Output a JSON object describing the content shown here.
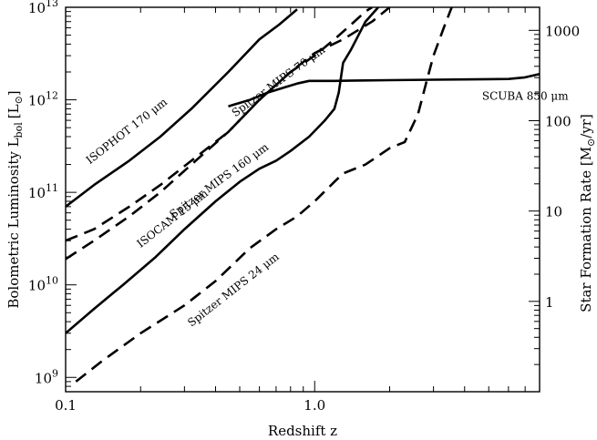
{
  "chart_data": {
    "type": "line",
    "xlabel": "Redshift z",
    "ylabel": "Bolometric Luminosity L",
    "ylabel_sub": "bol",
    "ylabel_unit": "[L",
    "ylabel_unit_close": "]",
    "y2label": "Star Formation Rate [M",
    "y2label_sub": "⊙",
    "y2label_unit": "/yr]",
    "xscale": "log",
    "yscale": "log",
    "xlim": [
      0.1,
      8.0
    ],
    "ylim": [
      700000000.0,
      10000000000000.0
    ],
    "y2lim": [
      0.1,
      1800
    ],
    "x_ticks": [
      {
        "value": 0.1,
        "label": "0.1"
      },
      {
        "value": 1.0,
        "label": "1.0"
      }
    ],
    "y_ticks": [
      {
        "value": 1000000000.0,
        "base": "10",
        "exp": "9"
      },
      {
        "value": 10000000000.0,
        "base": "10",
        "exp": "10"
      },
      {
        "value": 100000000000.0,
        "base": "10",
        "exp": "11"
      },
      {
        "value": 1000000000000.0,
        "base": "10",
        "exp": "12"
      },
      {
        "value": 10000000000000.0,
        "base": "10",
        "exp": "13"
      }
    ],
    "y2_ticks": [
      {
        "value": 1,
        "label": "1"
      },
      {
        "value": 10,
        "label": "10"
      },
      {
        "value": 100,
        "label": "100"
      },
      {
        "value": 1000,
        "label": "1000"
      }
    ],
    "series": [
      {
        "name": "ISOPHOT 170 μm",
        "style": "solid",
        "x": [
          0.1,
          0.13,
          0.18,
          0.24,
          0.32,
          0.45,
          0.6,
          0.72,
          0.85
        ],
        "y": [
          70000000000.0,
          120000000000.0,
          220000000000.0,
          400000000000.0,
          800000000000.0,
          2000000000000.0,
          4500000000000.0,
          6500000000000.0,
          9500000000000.0
        ]
      },
      {
        "name": "Spitzer MIPS 70 μm",
        "style": "dashed",
        "x": [
          0.1,
          0.13,
          0.18,
          0.24,
          0.32,
          0.45,
          0.6,
          0.8,
          1.0,
          1.2,
          1.4,
          1.6,
          1.7
        ],
        "y": [
          30000000000.0,
          40000000000.0,
          70000000000.0,
          120000000000.0,
          220000000000.0,
          450000000000.0,
          1000000000000.0,
          2000000000000.0,
          3000000000000.0,
          4500000000000.0,
          6500000000000.0,
          9000000000000.0,
          10000000000000.0
        ]
      },
      {
        "name": "Spitzer MIPS 160 μm",
        "style": "dashed",
        "x": [
          0.1,
          0.13,
          0.18,
          0.24,
          0.32,
          0.45,
          0.6,
          0.8,
          1.0,
          1.3,
          1.7,
          2.0
        ],
        "y": [
          19000000000.0,
          30000000000.0,
          55000000000.0,
          100000000000.0,
          200000000000.0,
          450000000000.0,
          1000000000000.0,
          2000000000000.0,
          3200000000000.0,
          4500000000000.0,
          7000000000000.0,
          10000000000000.0
        ]
      },
      {
        "name": "ISOCAM 15 μm",
        "style": "solid",
        "x": [
          0.1,
          0.13,
          0.17,
          0.23,
          0.3,
          0.4,
          0.5,
          0.6,
          0.7,
          0.8,
          0.95,
          1.1,
          1.2,
          1.25,
          1.3,
          1.4,
          1.6,
          1.8
        ],
        "y": [
          3000000000.0,
          5500000000.0,
          10000000000.0,
          20000000000.0,
          40000000000.0,
          80000000000.0,
          130000000000.0,
          180000000000.0,
          220000000000.0,
          280000000000.0,
          400000000000.0,
          600000000000.0,
          800000000000.0,
          1200000000000.0,
          2500000000000.0,
          3500000000000.0,
          7000000000000.0,
          10000000000000.0
        ]
      },
      {
        "name": "Spitzer MIPS 24 μm",
        "style": "dashed",
        "x": [
          0.11,
          0.14,
          0.2,
          0.3,
          0.4,
          0.55,
          0.7,
          0.85,
          1.0,
          1.2,
          1.3,
          1.6,
          2.0,
          2.3,
          2.6,
          2.8,
          3.0,
          3.3,
          3.55
        ],
        "y": [
          900000000.0,
          1500000000.0,
          3000000000.0,
          6000000000.0,
          11000000000.0,
          25000000000.0,
          40000000000.0,
          55000000000.0,
          80000000000.0,
          130000000000.0,
          160000000000.0,
          200000000000.0,
          300000000000.0,
          350000000000.0,
          700000000000.0,
          1500000000000.0,
          3000000000000.0,
          6000000000000.0,
          10000000000000.0
        ]
      },
      {
        "name": "SCUBA 850 μm",
        "style": "solid",
        "x": [
          0.45,
          0.55,
          0.65,
          0.75,
          0.85,
          0.95,
          1.2,
          1.6,
          2.0,
          3.0,
          4.0,
          5.0,
          6.0,
          7.0,
          8.0
        ],
        "y": [
          850000000000.0,
          1000000000000.0,
          1200000000000.0,
          1350000000000.0,
          1500000000000.0,
          1600000000000.0,
          1600000000000.0,
          1620000000000.0,
          1630000000000.0,
          1650000000000.0,
          1660000000000.0,
          1670000000000.0,
          1680000000000.0,
          1750000000000.0,
          1900000000000.0
        ]
      }
    ],
    "annotations": [
      {
        "series": 0,
        "text": "ISOPHOT 170 μm",
        "x": 0.125,
        "y": 200000000000.0,
        "angle": -38
      },
      {
        "series": 1,
        "text": "Spitzer MIPS 70 μm",
        "x": 0.48,
        "y": 650000000000.0,
        "angle": -36
      },
      {
        "series": 2,
        "text": "Spitzer MIPS 160 μm",
        "x": 0.27,
        "y": 52000000000.0,
        "angle": -36
      },
      {
        "series": 3,
        "text": "ISOCAM 15 μm",
        "x": 0.2,
        "y": 25000000000.0,
        "angle": -38
      },
      {
        "series": 4,
        "text": "Spitzer MIPS 24 μm",
        "x": 0.32,
        "y": 3500000000.0,
        "angle": -38
      },
      {
        "series": 5,
        "text": "SCUBA 850 μm",
        "x": 4.7,
        "y": 1000000000000.0,
        "angle": 0
      }
    ]
  }
}
